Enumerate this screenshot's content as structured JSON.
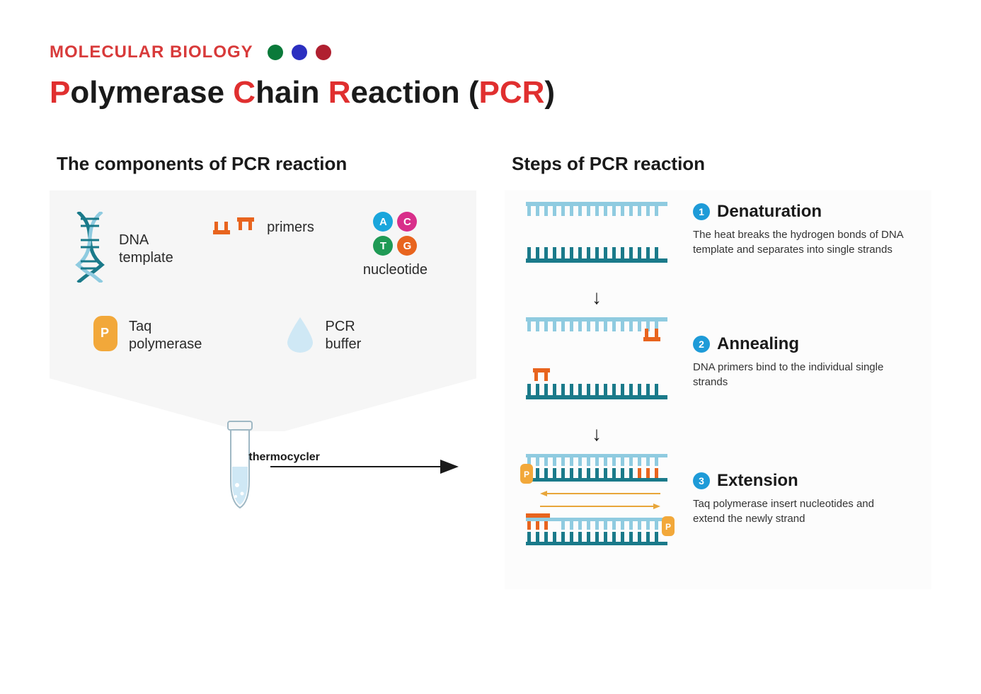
{
  "category": "MOLECULAR BIOLOGY",
  "dots": [
    "#0a7a3a",
    "#2b2fc0",
    "#b02030"
  ],
  "title_parts": [
    {
      "t": "P",
      "accent": true
    },
    {
      "t": "olymerase ",
      "accent": false
    },
    {
      "t": "C",
      "accent": true
    },
    {
      "t": "hain ",
      "accent": false
    },
    {
      "t": "R",
      "accent": true
    },
    {
      "t": "eaction (",
      "accent": false
    },
    {
      "t": "PCR",
      "accent": true
    },
    {
      "t": ")",
      "accent": false
    }
  ],
  "left": {
    "heading": "The components of PCR reaction",
    "components": {
      "dna_template": "DNA\ntemplate",
      "primers": "primers",
      "nucleotide": "nucleotide",
      "taq": "Taq\npolymerase",
      "buffer": "PCR\nbuffer"
    },
    "nucleotides": [
      {
        "l": "A",
        "c": "#1aa6dc"
      },
      {
        "l": "C",
        "c": "#d82f8a"
      },
      {
        "l": "T",
        "c": "#1f9a55"
      },
      {
        "l": "G",
        "c": "#e8641e"
      }
    ],
    "thermocycler": "thermocycler"
  },
  "right": {
    "heading": "Steps of PCR reaction",
    "steps": [
      {
        "n": "1",
        "title": "Denaturation",
        "desc": "The heat breaks the hydrogen bonds of DNA template and separates into single strands"
      },
      {
        "n": "2",
        "title": "Annealing",
        "desc": "DNA primers bind to the individual single strands"
      },
      {
        "n": "3",
        "title": "Extension",
        "desc": "Taq polymerase insert nucleotides and extend the newly strand"
      }
    ]
  },
  "colors": {
    "accent_red": "#e02f2f",
    "strand_light": "#8fcbe0",
    "strand_dark": "#1a7a8a",
    "primer": "#e8641e",
    "polymerase": "#f2a83a",
    "buffer": "#cfe8f5",
    "step_num": "#1e9bd8",
    "ext_arrow": "#e8a63a",
    "panel_bg": "#f6f6f6",
    "steps_bg": "#fcfcfc",
    "text": "#1a1a1a"
  },
  "typography": {
    "category_fontsize": 24,
    "title_fontsize": 44,
    "heading_fontsize": 26,
    "label_fontsize": 20,
    "step_title_fontsize": 24,
    "step_desc_fontsize": 15
  }
}
